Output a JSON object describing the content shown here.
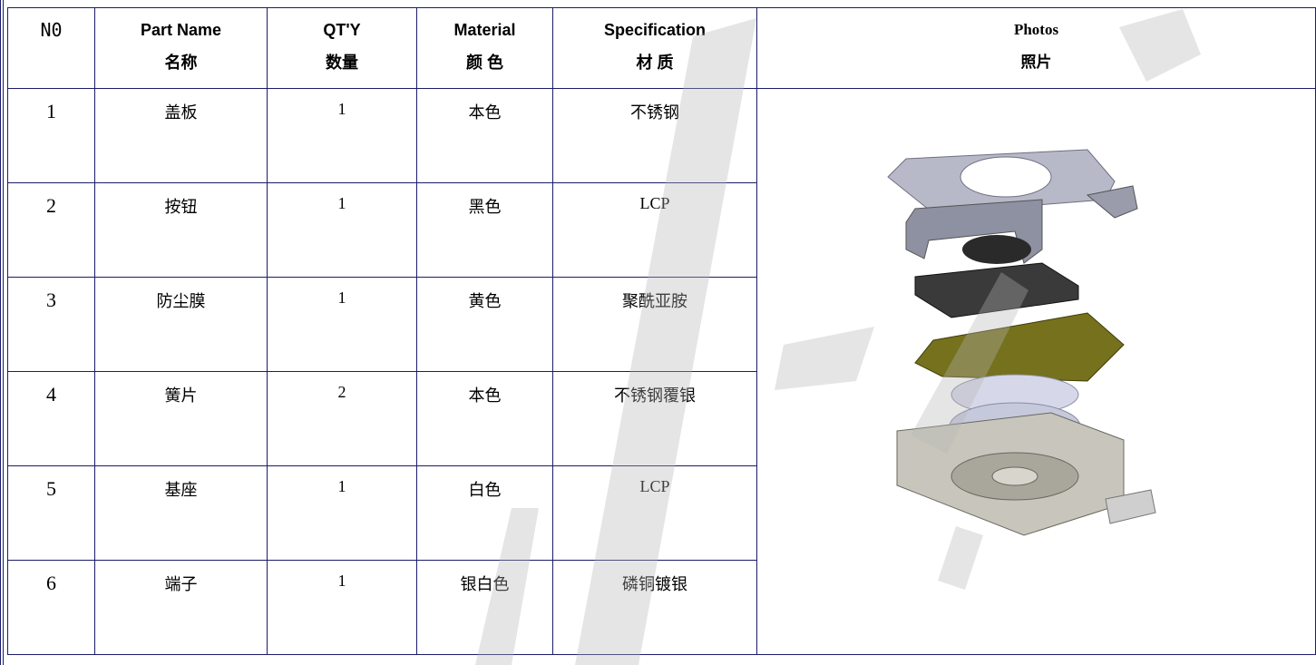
{
  "header": [
    {
      "en": "N0"
    },
    {
      "en": "Part Name",
      "zh": "名称"
    },
    {
      "en": "QT'Y",
      "zh": "数量"
    },
    {
      "en": "Material",
      "zh": "颜 色"
    },
    {
      "en": "Specification",
      "zh": "材 质"
    },
    {
      "en": "Photos",
      "zh": "照片"
    }
  ],
  "rows": [
    [
      "1",
      "盖板",
      "1",
      "本色",
      "不锈钢"
    ],
    [
      "2",
      "按钮",
      "1",
      "黑色",
      "LCP"
    ],
    [
      "3",
      "防尘膜",
      "1",
      "黄色",
      "聚酰亚胺"
    ],
    [
      "4",
      "簧片",
      "2",
      "本色",
      "不锈钢覆银"
    ],
    [
      "5",
      "基座",
      "1",
      "白色",
      "LCP"
    ],
    [
      "6",
      "端子",
      "1",
      "银白色",
      "磷铜镀银"
    ]
  ]
}
